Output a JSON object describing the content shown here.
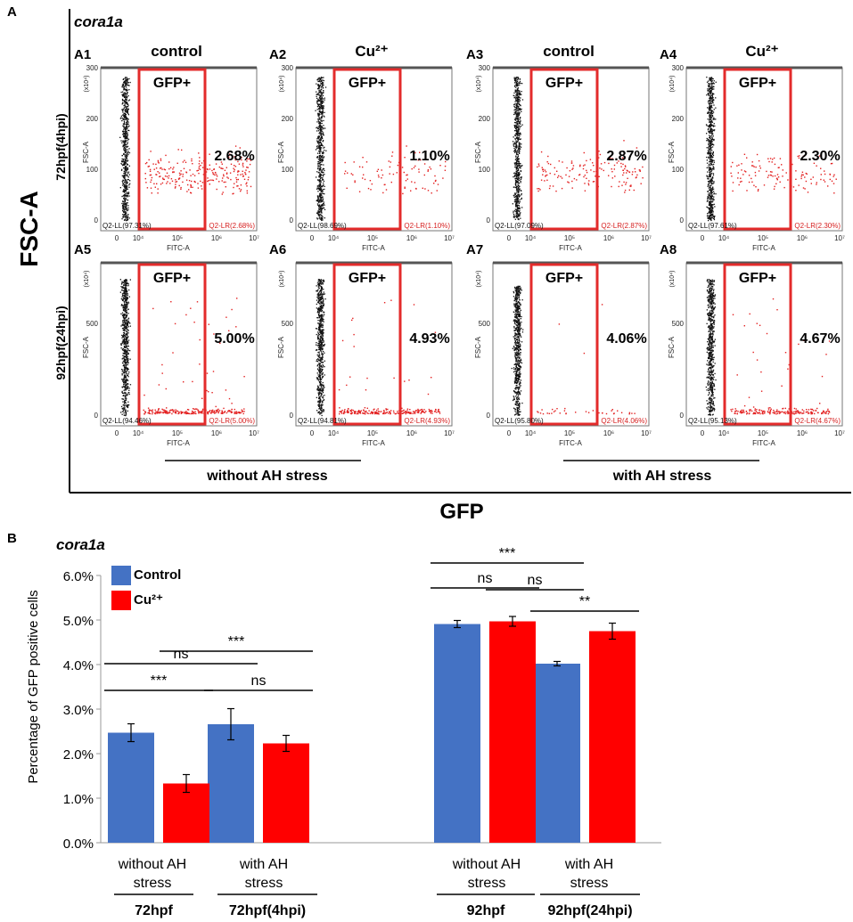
{
  "panel_a": {
    "label": "A",
    "gene": "cora1a",
    "yaxis": "FSC-A",
    "xaxis": "GFP",
    "row_labels": [
      "72hpf(4hpi)",
      "92hpf(24hpi)"
    ],
    "group_labels": [
      "without AH stress",
      "with AH stress"
    ],
    "gate_label": "GFP+",
    "fsc_label": "FSC-A",
    "fitc_label": "FITC-A",
    "scale_label": "(x10⁴)",
    "x_ticks": [
      "0",
      "10⁴",
      "10⁵",
      "10⁶",
      "10⁷"
    ],
    "plots": [
      {
        "id": "A1",
        "condition": "control",
        "percent": "2.68%",
        "ll": "Q2-LL(97.31%)",
        "lr": "Q2-LR(2.68%)",
        "y_ticks": [
          "0",
          "100",
          "200",
          "300"
        ]
      },
      {
        "id": "A2",
        "condition": "Cu²⁺",
        "percent": "1.10%",
        "ll": "Q2-LL(98.69%)",
        "lr": "Q2-LR(1.10%)",
        "y_ticks": [
          "0",
          "100",
          "200",
          "300"
        ]
      },
      {
        "id": "A3",
        "condition": "control",
        "percent": "2.87%",
        "ll": "Q2-LL(97.09%)",
        "lr": "Q2-LR(2.87%)",
        "y_ticks": [
          "0",
          "100",
          "200",
          "300"
        ]
      },
      {
        "id": "A4",
        "condition": "Cu²⁺",
        "percent": "2.30%",
        "ll": "Q2-LL(97.61%)",
        "lr": "Q2-LR(2.30%)",
        "y_ticks": [
          "0",
          "100",
          "200",
          "300"
        ]
      },
      {
        "id": "A5",
        "condition": "",
        "percent": "5.00%",
        "ll": "Q2-LL(94.46%)",
        "lr": "Q2-LR(5.00%)",
        "y_ticks": [
          "0",
          "500"
        ]
      },
      {
        "id": "A6",
        "condition": "",
        "percent": "4.93%",
        "ll": "Q2-LL(94.81%)",
        "lr": "Q2-LR(4.93%)",
        "y_ticks": [
          "0",
          "500"
        ]
      },
      {
        "id": "A7",
        "condition": "",
        "percent": "4.06%",
        "ll": "Q2-LL(95.80%)",
        "lr": "Q2-LR(4.06%)",
        "y_ticks": [
          "0",
          "500"
        ]
      },
      {
        "id": "A8",
        "condition": "",
        "percent": "4.67%",
        "ll": "Q2-LL(95.13%)",
        "lr": "Q2-LR(4.67%)",
        "y_ticks": [
          "0",
          "500"
        ]
      }
    ]
  },
  "chart_data": {
    "type": "bar",
    "panel_label": "B",
    "title": "cora1a",
    "ylabel": "Percentage of GFP positive cells",
    "ylim": [
      0,
      6.0
    ],
    "yticks": [
      "0.0%",
      "1.0%",
      "2.0%",
      "3.0%",
      "4.0%",
      "5.0%",
      "6.0%"
    ],
    "legend": {
      "position": "top-left"
    },
    "categories": [
      "without AH stress",
      "with AH stress",
      "without AH stress",
      "with AH stress"
    ],
    "groups": [
      "72hpf",
      "72hpf(4hpi)",
      "92hpf",
      "92hpf(24hpi)"
    ],
    "series": [
      {
        "name": "Control",
        "color": "#4472C4",
        "values": [
          2.47,
          2.66,
          4.91,
          4.02
        ],
        "errors": [
          0.2,
          0.35,
          0.08,
          0.05
        ]
      },
      {
        "name": "Cu²⁺",
        "color": "#FF0000",
        "values": [
          1.33,
          2.23,
          4.97,
          4.75
        ],
        "errors": [
          0.2,
          0.18,
          0.11,
          0.18
        ]
      }
    ],
    "significance": [
      {
        "label": "***",
        "from": [
          0,
          0
        ],
        "to": [
          0,
          1
        ],
        "level": 1.0
      },
      {
        "label": "ns",
        "from": [
          0,
          0
        ],
        "to": [
          1,
          0
        ],
        "level": 1.3
      },
      {
        "label": "ns",
        "from": [
          1,
          0
        ],
        "to": [
          1,
          1
        ],
        "level": 1.0
      },
      {
        "label": "***",
        "from": [
          0,
          1
        ],
        "to": [
          1,
          1
        ],
        "level": 1.5
      },
      {
        "label": "ns",
        "from": [
          2,
          0
        ],
        "to": [
          2,
          1
        ],
        "level": 1.0
      },
      {
        "label": "***",
        "from": [
          2,
          0
        ],
        "to": [
          3,
          0
        ],
        "level": 1.3
      },
      {
        "label": "ns",
        "from": [
          2,
          1
        ],
        "to": [
          3,
          0
        ],
        "level": 1.6
      },
      {
        "label": "**",
        "from": [
          3,
          0
        ],
        "to": [
          3,
          1
        ],
        "level": 1.0
      }
    ]
  }
}
